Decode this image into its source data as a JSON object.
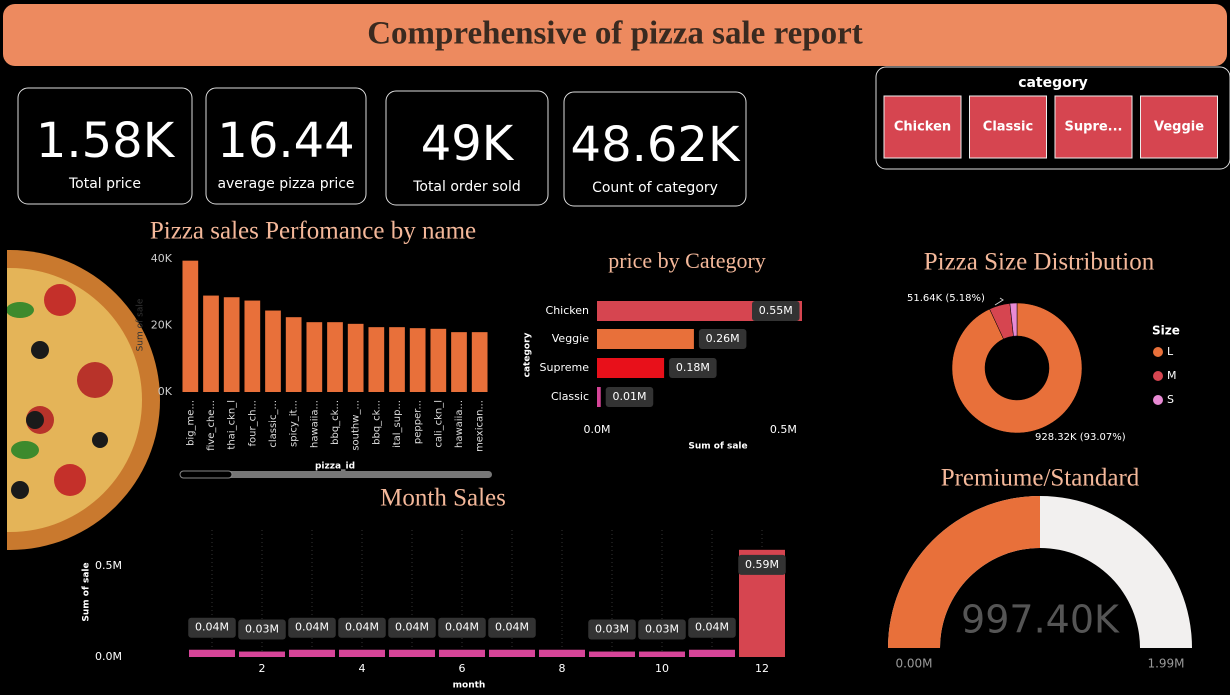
{
  "header": {
    "title": "Comprehensive of pizza sale report"
  },
  "cards": [
    {
      "value": "1.58K",
      "label": "Total price"
    },
    {
      "value": "16.44",
      "label": "average pizza price"
    },
    {
      "value": "49K",
      "label": "Total order sold"
    },
    {
      "value": "48.62K",
      "label": "Count of category"
    }
  ],
  "slicer": {
    "title": "category",
    "items": [
      "Chicken",
      "Classic",
      "Supre...",
      "Veggie"
    ]
  },
  "chart_data": [
    {
      "type": "bar",
      "title": "Pizza sales Perfomance by name",
      "x_label": "pizza_id",
      "y_label": "Sum of sale",
      "categories": [
        "big_me...",
        "five_che...",
        "thai_ckn_l",
        "four_ch...",
        "classic_...",
        "spicy_it...",
        "hawaiia...",
        "bbq_ck...",
        "southw_...",
        "bbq_ck...",
        "ital_sup...",
        "pepper...",
        "cali_ckn_l",
        "hawaiia...",
        "mexican..."
      ],
      "values": [
        39500,
        29000,
        28500,
        27500,
        24500,
        22500,
        21000,
        21000,
        20500,
        19500,
        19500,
        19200,
        19000,
        18000,
        18000
      ],
      "color": "#e8703a",
      "ylim": [
        0,
        40000
      ],
      "yticks": [
        {
          "value": 0,
          "label": "0K"
        },
        {
          "value": 20000,
          "label": "20K"
        },
        {
          "value": 40000,
          "label": "40K"
        }
      ]
    },
    {
      "type": "hbar",
      "title": "price by Category",
      "x_label": "Sum of sale",
      "y_label": "category",
      "categories": [
        "Chicken",
        "Veggie",
        "Supreme",
        "Classic"
      ],
      "values": [
        550000,
        260000,
        180000,
        10000
      ],
      "value_labels": [
        "0.55M",
        "0.26M",
        "0.18M",
        "0.01M"
      ],
      "colors": [
        "#d64550",
        "#e8703a",
        "#e8101a",
        "#d64598"
      ],
      "xlim": [
        0,
        550000
      ],
      "xticks": [
        {
          "value": 0,
          "label": "0.0M"
        },
        {
          "value": 500000,
          "label": "0.5M"
        }
      ]
    },
    {
      "type": "donut",
      "title": "Pizza Size Distribution",
      "legend_title": "Size",
      "legend": "right",
      "categories": [
        "L",
        "M",
        "S"
      ],
      "values": [
        928320,
        51640,
        17440
      ],
      "value_labels": [
        "928.32K (93.07%)",
        "51.64K (5.18%)",
        null
      ],
      "colors": [
        "#e8703a",
        "#d64550",
        "#e88ad4"
      ]
    },
    {
      "type": "gauge",
      "title": "Premiume/Standard",
      "value": 997400,
      "value_label": "997.40K",
      "ylim": [
        0,
        1994800
      ],
      "yticks": [
        {
          "value": 0,
          "label": "0.00M"
        },
        {
          "value": 1994800,
          "label": "1.99M"
        }
      ],
      "color": "#e8703a",
      "track_color": "#f2f0ef"
    },
    {
      "type": "columns",
      "title": "Month Sales",
      "x_label": "month",
      "y_label": "Sum of sale",
      "x": [
        1,
        2,
        3,
        4,
        5,
        6,
        7,
        8,
        9,
        10,
        11,
        12
      ],
      "values": [
        40000,
        30000,
        40000,
        40000,
        40000,
        40000,
        40000,
        40000,
        30000,
        30000,
        40000,
        590000
      ],
      "value_labels": [
        "0.04M",
        "0.03M",
        "0.04M",
        "0.04M",
        "0.04M",
        "0.04M",
        "0.04M",
        null,
        "0.03M",
        "0.03M",
        "0.04M",
        "0.59M"
      ],
      "colors": [
        "#d64598",
        "#d64598",
        "#d64598",
        "#d64598",
        "#d64598",
        "#d64598",
        "#d64598",
        "#d64598",
        "#d64598",
        "#d64598",
        "#d64598",
        "#d64550"
      ],
      "xlim": [
        0.5,
        12.5
      ],
      "xticks": [
        2,
        4,
        6,
        8,
        10,
        12
      ],
      "ylim": [
        0,
        600000
      ],
      "yticks": [
        {
          "value": 0,
          "label": "0.0M"
        },
        {
          "value": 500000,
          "label": "0.5M"
        }
      ]
    }
  ]
}
